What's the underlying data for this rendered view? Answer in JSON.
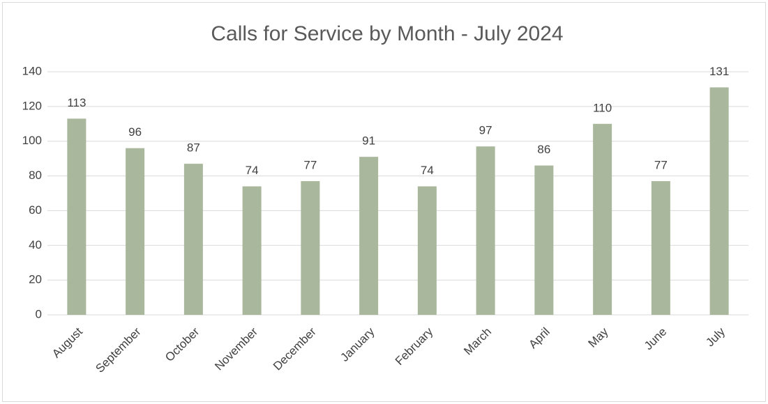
{
  "chart_data": {
    "type": "bar",
    "title": "Calls for Service by Month - July 2024",
    "categories": [
      "August",
      "September",
      "October",
      "November",
      "December",
      "January",
      "February",
      "March",
      "April",
      "May",
      "June",
      "July"
    ],
    "values": [
      113,
      96,
      87,
      74,
      77,
      91,
      74,
      97,
      86,
      110,
      77,
      131
    ],
    "color": "#a9b89c",
    "ylim": [
      0,
      140
    ],
    "yticks": [
      0,
      20,
      40,
      60,
      80,
      100,
      120,
      140
    ],
    "grid": true
  }
}
